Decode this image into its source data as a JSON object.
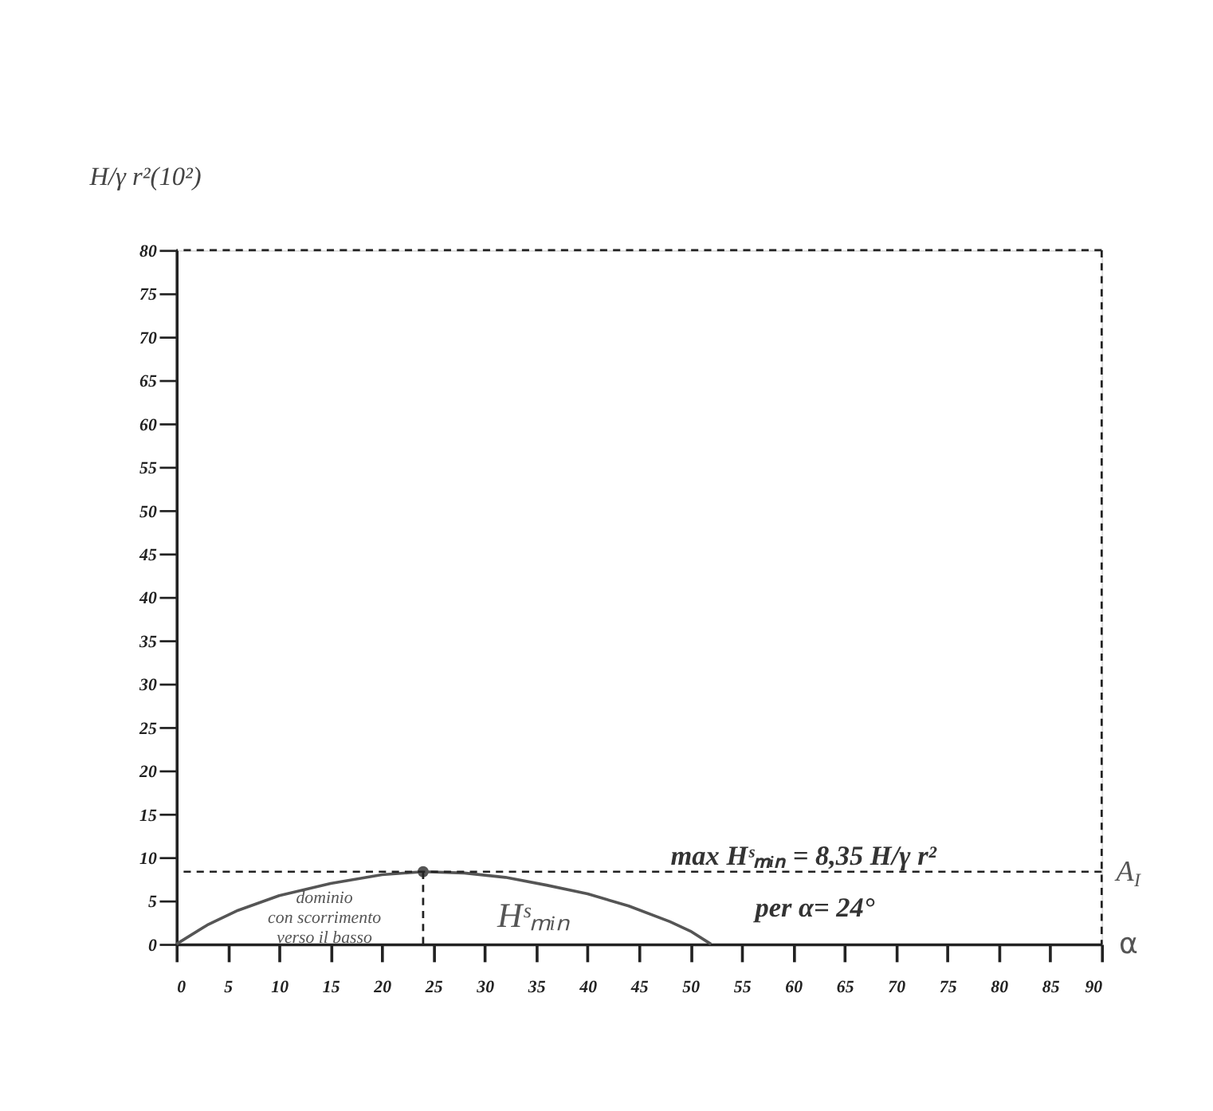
{
  "chart_data": {
    "type": "line",
    "xlabel": "α",
    "ylabel": "H/γ r²(10²)",
    "xlim": [
      0,
      90
    ],
    "xticks": [
      0,
      5,
      10,
      15,
      20,
      25,
      30,
      35,
      40,
      45,
      50,
      55,
      60,
      65,
      70,
      75,
      80,
      85,
      90
    ],
    "ylim": [
      0,
      80
    ],
    "yticks": [
      0,
      5,
      10,
      15,
      20,
      25,
      30,
      35,
      40,
      45,
      50,
      55,
      60,
      65,
      70,
      75,
      80
    ],
    "grid": false,
    "marker": "none",
    "line_style": "solid",
    "series": [
      {
        "name": "Hˢₘᵢₙ",
        "color": "#555555",
        "x": [
          0,
          3,
          6,
          10,
          15,
          20,
          24,
          28,
          32,
          36,
          40,
          44,
          48,
          50,
          52
        ],
        "values": [
          0,
          2.2,
          3.9,
          5.6,
          7.0,
          8.0,
          8.35,
          8.2,
          7.7,
          6.8,
          5.8,
          4.4,
          2.6,
          1.5,
          0
        ]
      },
      {
        "color": "#555555",
        "type": "scatter",
        "marker": "circle",
        "x": [
          24
        ],
        "values": [
          8.35
        ]
      },
      {
        "color": "#222222",
        "type": "line",
        "line_style": "dashed",
        "x": [
          24,
          24
        ],
        "values": [
          0,
          8.35
        ]
      }
    ],
    "ref_lines": [
      {
        "axis": "y",
        "value": 8.35,
        "label": "A$_{I}$",
        "color": "#222222",
        "line_style": "dashed"
      },
      {
        "axis": "y",
        "value": 80,
        "label": null,
        "color": "#222222",
        "line_style": "dashed"
      },
      {
        "axis": "x",
        "value": 90,
        "label": null,
        "color": "#222222",
        "line_style": "dashed"
      }
    ],
    "annotations": [
      {
        "text": "max Hˢₘᵢₙ = 8,35 H/γ r²",
        "x": 61,
        "y": 8.35
      },
      "per  α= 24°",
      "dominio\ncon scorrimento\nverso il basso"
    ]
  }
}
